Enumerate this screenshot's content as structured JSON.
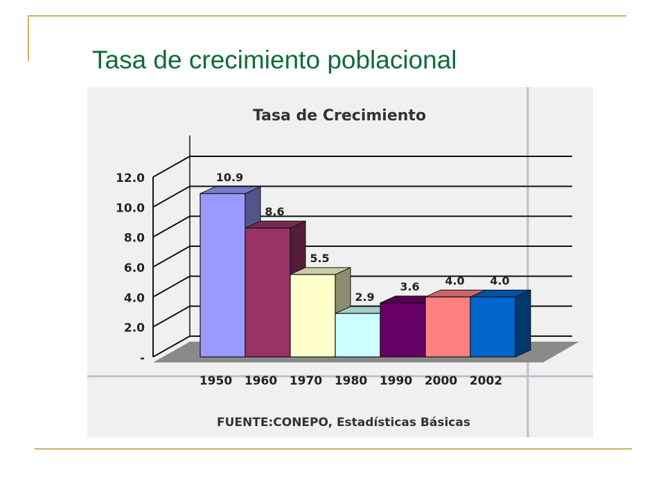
{
  "slide": {
    "title": "Tasa de crecimiento poblacional"
  },
  "chart_data": {
    "type": "bar",
    "title": "Tasa de Crecimiento",
    "categories": [
      "1950",
      "1960",
      "1970",
      "1980",
      "1990",
      "2000",
      "2002"
    ],
    "values": [
      10.9,
      8.6,
      5.5,
      2.9,
      3.6,
      4.0,
      4.0
    ],
    "data_labels": [
      "10.9",
      "8.6",
      "5.5",
      "2.9",
      "3.6",
      "4.0",
      "4.0"
    ],
    "yticks": [
      "-",
      "2.0",
      "4.0",
      "6.0",
      "8.0",
      "10.0",
      "12.0"
    ],
    "ylim": [
      0,
      12
    ],
    "grid": true,
    "three_d": true,
    "bar_colors": [
      "#9999ff",
      "#993366",
      "#ffffcc",
      "#ccffff",
      "#660066",
      "#ff8080",
      "#0066cc"
    ],
    "source": "FUENTE:CONEPO, Estadísticas Básicas",
    "xlabel": "",
    "ylabel": ""
  },
  "colors": {
    "title": "#0f6b3a",
    "rules": "#c8b25a",
    "chart_bg": "#f0f0f0",
    "gridline": "#111111",
    "floor": "#8a8a8a"
  }
}
